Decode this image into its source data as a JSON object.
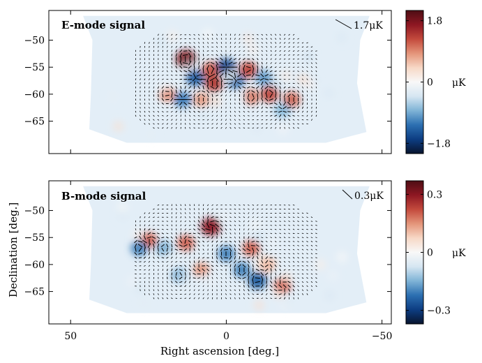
{
  "chart_data": [
    {
      "type": "heatmap",
      "title": "E-mode signal",
      "scale_bar_label": "1.7μK",
      "xlim": [
        57,
        -53
      ],
      "ylim": [
        -71,
        -44.5
      ],
      "xticks": [
        50,
        0,
        -50
      ],
      "yticks": [
        -50,
        -55,
        -60,
        -65
      ],
      "ytick_labels": [
        "−50",
        "−55",
        "−60",
        "−65"
      ],
      "colorbar": {
        "range": [
          -2.1,
          2.1
        ],
        "ticks": [
          1.8,
          0,
          -1.8
        ],
        "tick_labels": [
          "1.8",
          "0",
          "−1.8"
        ],
        "unit": "μK",
        "colors": [
          "#08142e",
          "#0d3d82",
          "#2c6fb1",
          "#7fb3d6",
          "#d6e6f2",
          "#f8f8f8",
          "#f7d8c6",
          "#e4957a",
          "#c34a3d",
          "#8e1722",
          "#4e0d14"
        ]
      },
      "field_footprint_ra": [
        42,
        -42
      ],
      "field_footprint_dec": [
        -69,
        -47
      ],
      "hot_spots": [
        {
          "ra": 13,
          "dec": -53.5,
          "value": 1.8
        },
        {
          "ra": 5,
          "dec": -55.5,
          "value": 1.2
        },
        {
          "ra": 4,
          "dec": -58,
          "value": 1.4
        },
        {
          "ra": -7,
          "dec": -55.5,
          "value": 1.3
        },
        {
          "ra": -8,
          "dec": -60.5,
          "value": 1.0
        },
        {
          "ra": -14,
          "dec": -60,
          "value": 1.3
        },
        {
          "ra": -21,
          "dec": -61,
          "value": 1.1
        },
        {
          "ra": 19,
          "dec": -60,
          "value": 0.9
        },
        {
          "ra": 8,
          "dec": -61,
          "value": 0.8
        }
      ],
      "cold_spots": [
        {
          "ra": 0,
          "dec": -55,
          "value": -1.6
        },
        {
          "ra": 10,
          "dec": -57,
          "value": -1.4
        },
        {
          "ra": -3,
          "dec": -57.5,
          "value": -1.3
        },
        {
          "ra": -12,
          "dec": -57,
          "value": -1.0
        },
        {
          "ra": 14,
          "dec": -61,
          "value": -1.2
        },
        {
          "ra": -18,
          "dec": -63,
          "value": -0.8
        }
      ]
    },
    {
      "type": "heatmap",
      "title": "B-mode signal",
      "scale_bar_label": "0.3μK",
      "xlim": [
        57,
        -53
      ],
      "ylim": [
        -71,
        -44.5
      ],
      "xticks": [
        50,
        0,
        -50
      ],
      "xtick_labels": [
        "50",
        "0",
        "−50"
      ],
      "yticks": [
        -50,
        -55,
        -60,
        -65
      ],
      "ytick_labels": [
        "−50",
        "−55",
        "−60",
        "−65"
      ],
      "xlabel": "Right ascension [deg.]",
      "ylabel": "Declination [deg.]",
      "colorbar": {
        "range": [
          -0.37,
          0.37
        ],
        "ticks": [
          0.3,
          0,
          -0.3
        ],
        "tick_labels": [
          "0.3",
          "0",
          "−0.3"
        ],
        "unit": "μK",
        "colors": [
          "#08142e",
          "#0d3d82",
          "#2c6fb1",
          "#7fb3d6",
          "#d6e6f2",
          "#f8f8f8",
          "#f7d8c6",
          "#e4957a",
          "#c34a3d",
          "#8e1722",
          "#4e0d14"
        ]
      },
      "field_footprint_ra": [
        42,
        -42
      ],
      "field_footprint_dec": [
        -69,
        -47
      ],
      "hot_spots": [
        {
          "ra": 5,
          "dec": -53,
          "value": 0.3
        },
        {
          "ra": 25,
          "dec": -55.5,
          "value": 0.2
        },
        {
          "ra": 13,
          "dec": -56,
          "value": 0.2
        },
        {
          "ra": -8,
          "dec": -57,
          "value": 0.2
        },
        {
          "ra": -13,
          "dec": -60,
          "value": 0.15
        },
        {
          "ra": -18,
          "dec": -64,
          "value": 0.2
        },
        {
          "ra": 8,
          "dec": -61,
          "value": 0.15
        }
      ],
      "cold_spots": [
        {
          "ra": 28,
          "dec": -57,
          "value": -0.2
        },
        {
          "ra": 20,
          "dec": -57,
          "value": -0.15
        },
        {
          "ra": 0,
          "dec": -58,
          "value": -0.2
        },
        {
          "ra": -5,
          "dec": -61,
          "value": -0.2
        },
        {
          "ra": -10,
          "dec": -63,
          "value": -0.25
        },
        {
          "ra": 15,
          "dec": -62,
          "value": -0.15
        }
      ]
    }
  ]
}
